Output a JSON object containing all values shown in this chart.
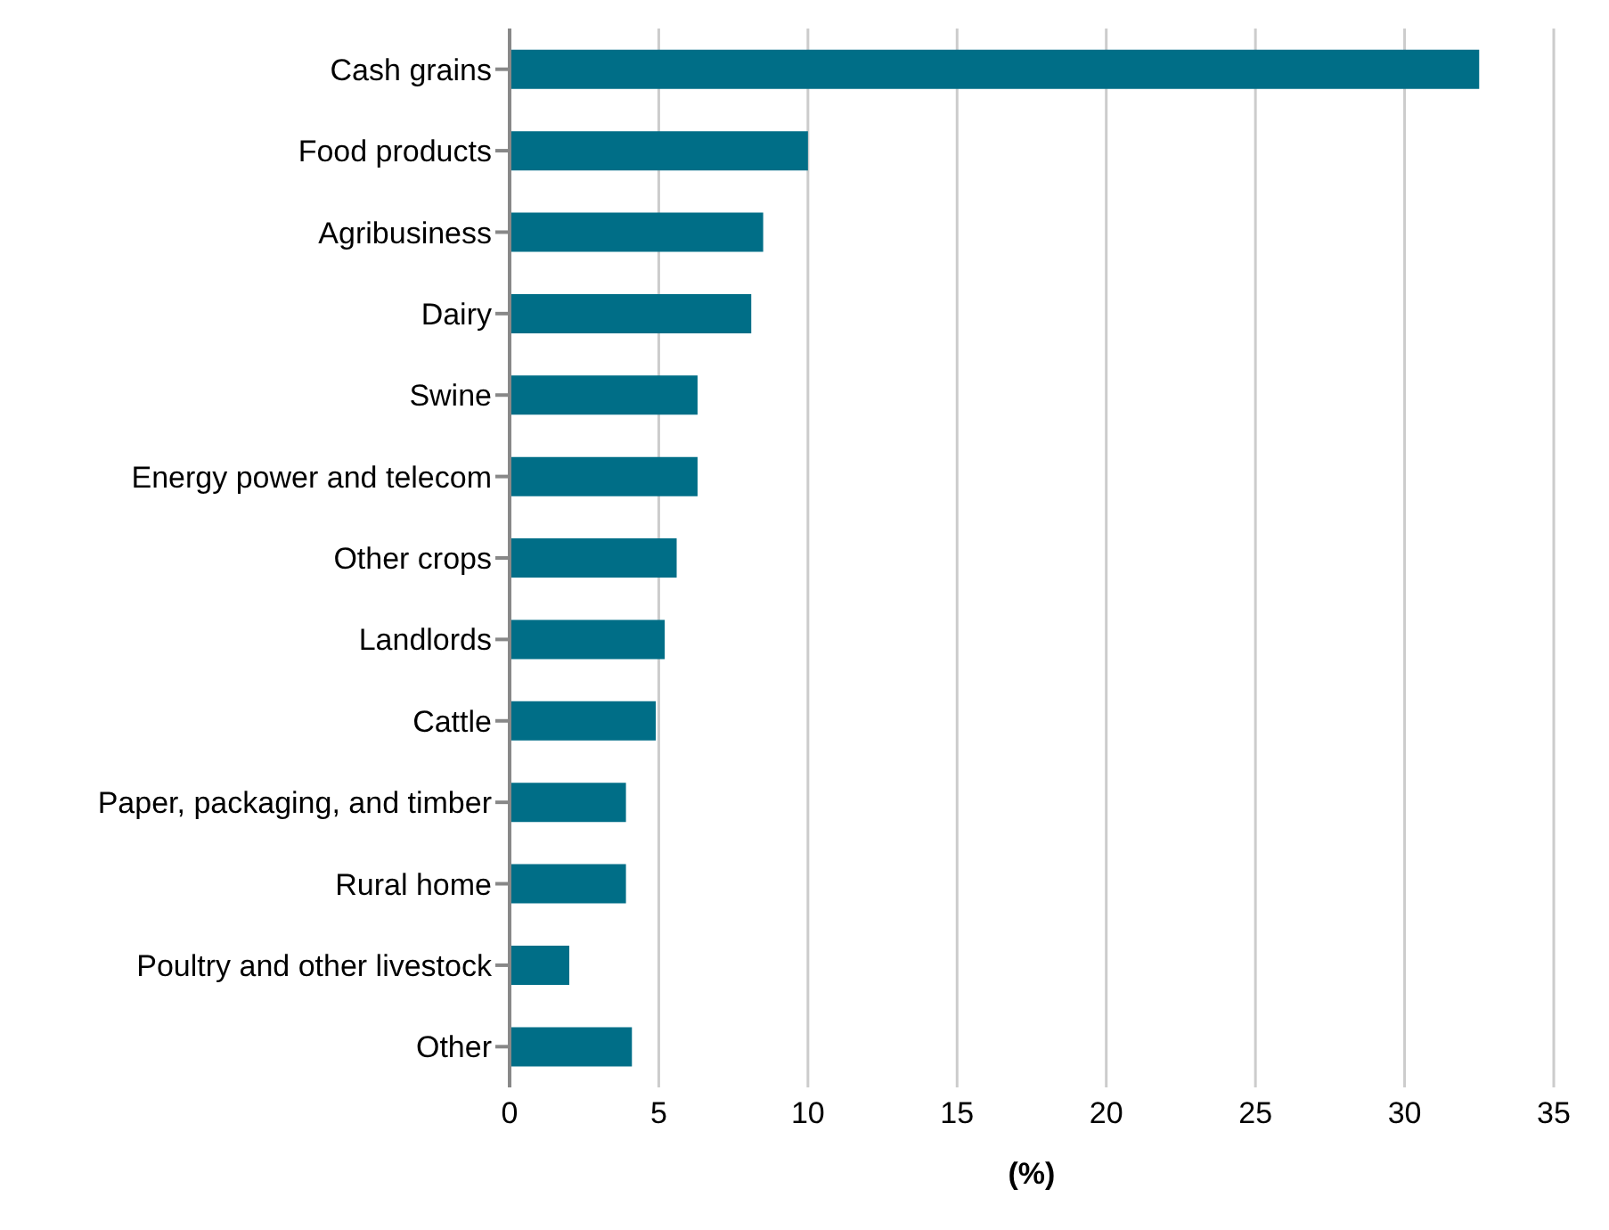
{
  "chart_data": {
    "type": "bar",
    "orientation": "horizontal",
    "xlabel": "(%)",
    "categories": [
      "Cash grains",
      "Food products",
      "Agribusiness",
      "Dairy",
      "Swine",
      "Energy power and telecom",
      "Other crops",
      "Landlords",
      "Cattle",
      "Paper, packaging, and timber",
      "Rural home",
      "Poultry and other livestock",
      "Other"
    ],
    "values": [
      32.5,
      10.0,
      8.5,
      8.1,
      6.3,
      6.3,
      5.6,
      5.2,
      4.9,
      3.9,
      3.9,
      2.0,
      4.1
    ],
    "color": "#006e87",
    "xlim": [
      0,
      35
    ],
    "xticks": [
      0,
      5,
      10,
      15,
      20,
      25,
      30,
      35
    ],
    "grid": "x"
  }
}
